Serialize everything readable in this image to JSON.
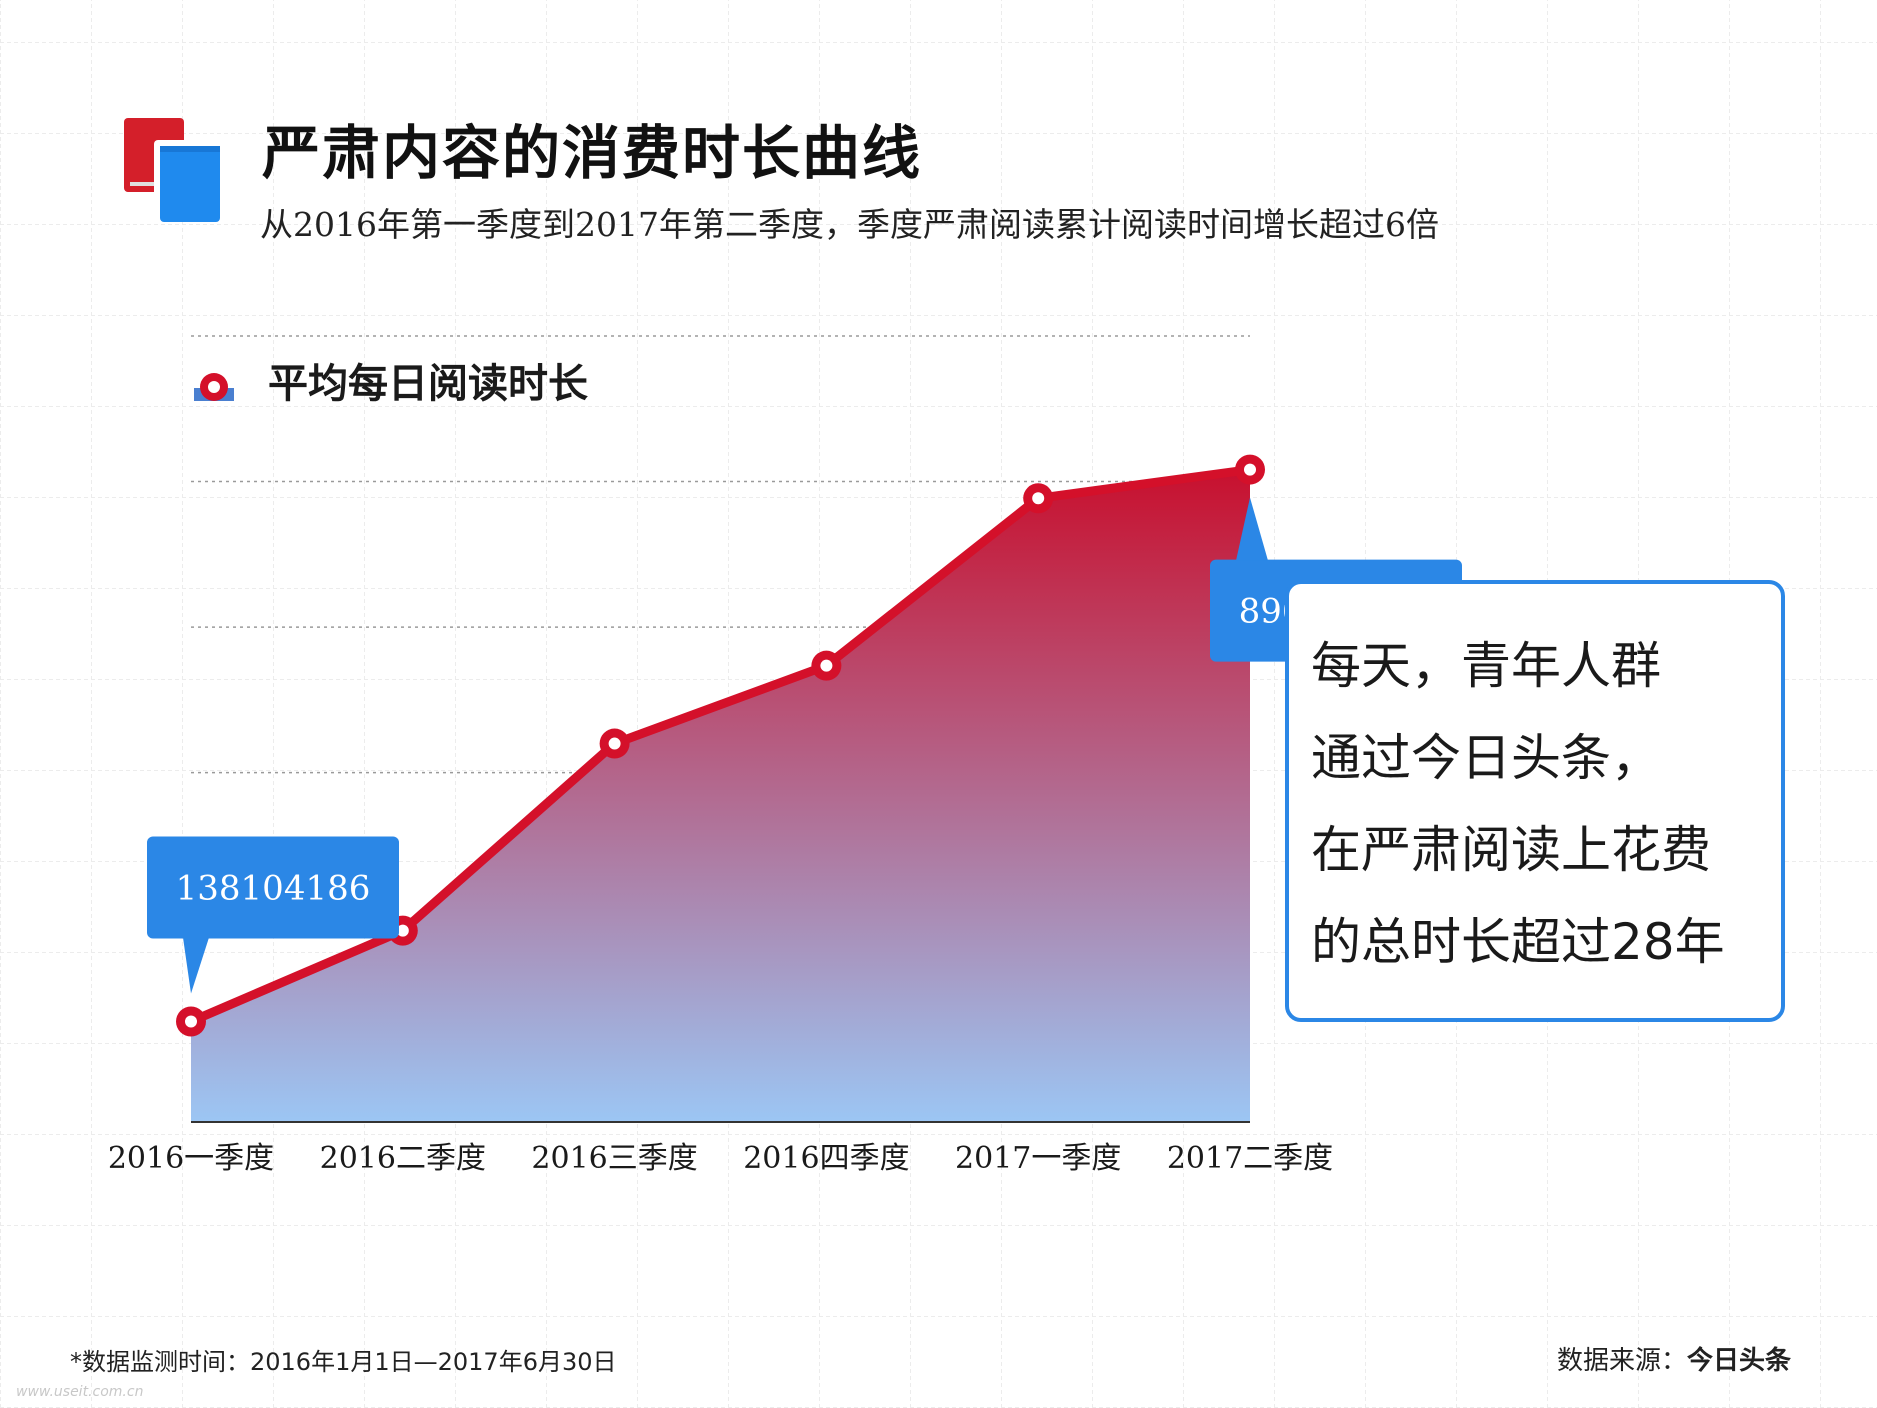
{
  "header": {
    "title": "严肃内容的消费时长曲线",
    "subtitle": "从2016年第一季度到2017年第二季度，季度严肃阅读累计阅读时间增长超过6倍"
  },
  "colors": {
    "line": "#d4102a",
    "area_top": "#c8102e",
    "area_bottom": "#9cc6f4",
    "callout": "#2b87e6",
    "book_red": "#d41f2a",
    "book_blue": "#1f8aee"
  },
  "chart_data": {
    "type": "area",
    "categories": [
      "2016一季度",
      "2016二季度",
      "2016三季度",
      "2016四季度",
      "2017一季度",
      "2017二季度"
    ],
    "series": [
      {
        "name": "平均每日阅读时长",
        "values": [
          138104186,
          263000000,
          520000000,
          627000000,
          857000000,
          896457048
        ]
      }
    ],
    "ylim": [
      0,
      1080000000
    ],
    "grid": "horizontal-dotted",
    "legend": "top-left",
    "data_labels": [
      {
        "category": "2016一季度",
        "text": "138104186"
      },
      {
        "category": "2017二季度",
        "text": "896457048"
      }
    ]
  },
  "annotation": {
    "lines": [
      "每天，青年人群",
      "通过今日头条，",
      "在严肃阅读上花费",
      "的总时长超过28年"
    ]
  },
  "footer": {
    "note": "*数据监测时间：2016年1月1日—2017年6月30日",
    "source_label": "数据来源：",
    "source_name": "今日头条",
    "watermark": "www.useit.com.cn"
  }
}
